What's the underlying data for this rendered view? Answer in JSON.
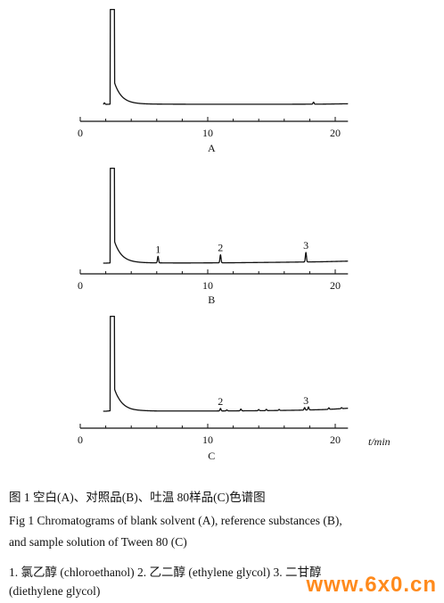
{
  "chart_data": [
    {
      "type": "line",
      "panel_label": "A",
      "x_ticks": [
        "0",
        "10",
        "20"
      ],
      "xlim": [
        0,
        21
      ],
      "baseline": [
        [
          2.0,
          0.0
        ],
        [
          3.0,
          0.6
        ],
        [
          5.0,
          0.3
        ],
        [
          8.0,
          0.15
        ],
        [
          12.0,
          0.1
        ],
        [
          16.0,
          0.12
        ],
        [
          19.0,
          0.25
        ],
        [
          21.0,
          0.6
        ]
      ],
      "peaks": [
        {
          "x": 2.4,
          "height": 95,
          "role": "solvent"
        },
        {
          "x": 1.9,
          "height": 1.5
        },
        {
          "x": 18.3,
          "height": 2.0
        }
      ],
      "peak_labels": []
    },
    {
      "type": "line",
      "panel_label": "B",
      "x_ticks": [
        "0",
        "10",
        "20"
      ],
      "xlim": [
        0,
        21
      ],
      "baseline": [
        [
          2.0,
          0.0
        ],
        [
          3.0,
          0.6
        ],
        [
          5.0,
          0.3
        ],
        [
          8.0,
          0.15
        ],
        [
          12.0,
          0.4
        ],
        [
          16.0,
          0.9
        ],
        [
          19.0,
          1.4
        ],
        [
          21.0,
          2.0
        ]
      ],
      "peaks": [
        {
          "x": 2.4,
          "height": 95,
          "role": "solvent"
        },
        {
          "x": 6.1,
          "height": 6.5
        },
        {
          "x": 11.0,
          "height": 8.0
        },
        {
          "x": 17.7,
          "height": 9.5
        }
      ],
      "peak_labels": [
        {
          "text": "1",
          "x": 6.1
        },
        {
          "text": "2",
          "x": 11.0
        },
        {
          "text": "3",
          "x": 17.7
        }
      ]
    },
    {
      "type": "line",
      "panel_label": "C",
      "x_ticks": [
        "0",
        "10",
        "20"
      ],
      "xlim": [
        0,
        21
      ],
      "x_unit_label": "t/min",
      "baseline": [
        [
          2.0,
          0.0
        ],
        [
          3.0,
          1.2
        ],
        [
          4.0,
          0.5
        ],
        [
          6.0,
          0.2
        ],
        [
          10.0,
          0.2
        ],
        [
          14.0,
          0.5
        ],
        [
          17.0,
          1.0
        ],
        [
          19.0,
          1.6
        ],
        [
          20.0,
          2.2
        ],
        [
          21.0,
          3.0
        ]
      ],
      "peaks": [
        {
          "x": 2.4,
          "height": 95,
          "role": "solvent"
        },
        {
          "x": 11.0,
          "height": 2.5
        },
        {
          "x": 11.5,
          "height": 1.0
        },
        {
          "x": 12.6,
          "height": 1.8
        },
        {
          "x": 14.0,
          "height": 1.2
        },
        {
          "x": 14.6,
          "height": 1.3
        },
        {
          "x": 15.6,
          "height": 1.0
        },
        {
          "x": 17.6,
          "height": 2.5
        },
        {
          "x": 17.9,
          "height": 3.0
        },
        {
          "x": 19.5,
          "height": 1.5
        },
        {
          "x": 20.5,
          "height": 1.0
        }
      ],
      "peak_labels": [
        {
          "text": "2",
          "x": 11.0
        },
        {
          "text": "3",
          "x": 17.7
        }
      ]
    }
  ],
  "caption": {
    "line1": "图 1  空白(A)、对照品(B)、吐温 80样品(C)色谱图",
    "line2": "Fig 1  Chromatograms of blank solvent (A), reference substances (B),",
    "line3": "and sample solution of Tween 80 (C)",
    "line4": "1. 氯乙醇 (chloroethanol)   2. 乙二醇 (ethylene glycol)   3. 二甘醇",
    "line5": "(diethylene glycol)"
  },
  "watermark": "www.6x0.cn",
  "colors": {
    "ink": "#111111",
    "watermark": "#ff8a1c"
  }
}
